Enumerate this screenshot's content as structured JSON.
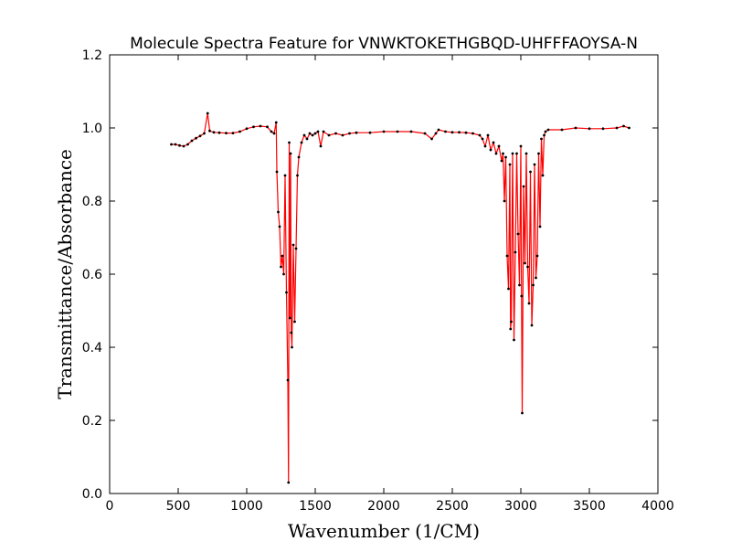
{
  "chart_data": {
    "type": "line",
    "title": "Molecule Spectra Feature for VNWKTOKETHGBQD-UHFFFAOYSA-N",
    "x_label": "Wavenumber (1/CM)",
    "y_label": "Transmittance/Absorbance",
    "line_color": "#ff0000",
    "marker_color": "#000000",
    "label_color": "#8b0000",
    "xlim": [
      0,
      4000
    ],
    "xticks": [
      0,
      500,
      1000,
      1500,
      2000,
      2500,
      3000,
      3500,
      4000
    ],
    "ylim": [
      0,
      1.2
    ],
    "yticks": [
      {
        "value": 0,
        "label": "0.0"
      },
      0.2,
      0.4,
      0.6,
      0.8,
      {
        "value": 1,
        "label": "1.0"
      },
      1.2
    ],
    "x": [
      450,
      480,
      510,
      540,
      570,
      600,
      630,
      660,
      690,
      715,
      730,
      760,
      800,
      850,
      900,
      950,
      1000,
      1050,
      1100,
      1150,
      1180,
      1200,
      1215,
      1220,
      1230,
      1240,
      1250,
      1260,
      1270,
      1280,
      1290,
      1300,
      1305,
      1310,
      1315,
      1320,
      1325,
      1330,
      1340,
      1350,
      1360,
      1370,
      1380,
      1400,
      1420,
      1440,
      1460,
      1480,
      1500,
      1520,
      1540,
      1560,
      1600,
      1650,
      1700,
      1750,
      1800,
      1900,
      2000,
      2100,
      2200,
      2300,
      2350,
      2380,
      2400,
      2450,
      2500,
      2550,
      2600,
      2650,
      2700,
      2720,
      2740,
      2760,
      2780,
      2800,
      2820,
      2840,
      2860,
      2870,
      2880,
      2890,
      2900,
      2910,
      2920,
      2925,
      2930,
      2940,
      2950,
      2960,
      2970,
      2980,
      2990,
      3000,
      3005,
      3010,
      3020,
      3030,
      3040,
      3050,
      3060,
      3070,
      3080,
      3090,
      3100,
      3110,
      3120,
      3130,
      3140,
      3150,
      3160,
      3170,
      3180,
      3200,
      3300,
      3400,
      3500,
      3600,
      3700,
      3750,
      3790
    ],
    "values": [
      0.955,
      0.955,
      0.952,
      0.95,
      0.955,
      0.965,
      0.972,
      0.978,
      0.985,
      1.04,
      0.992,
      0.988,
      0.987,
      0.986,
      0.986,
      0.99,
      0.998,
      1.003,
      1.005,
      1.003,
      0.99,
      0.985,
      1.015,
      0.88,
      0.77,
      0.73,
      0.62,
      0.65,
      0.6,
      0.87,
      0.55,
      0.31,
      0.03,
      0.96,
      0.48,
      0.93,
      0.44,
      0.4,
      0.68,
      0.47,
      0.67,
      0.87,
      0.92,
      0.96,
      0.98,
      0.97,
      0.985,
      0.98,
      0.985,
      0.99,
      0.95,
      0.99,
      0.98,
      0.985,
      0.98,
      0.985,
      0.987,
      0.987,
      0.99,
      0.99,
      0.99,
      0.985,
      0.97,
      0.985,
      0.995,
      0.99,
      0.988,
      0.988,
      0.987,
      0.985,
      0.98,
      0.97,
      0.95,
      0.98,
      0.94,
      0.96,
      0.93,
      0.95,
      0.91,
      0.93,
      0.8,
      0.92,
      0.65,
      0.56,
      0.9,
      0.45,
      0.47,
      0.93,
      0.42,
      0.66,
      0.93,
      0.71,
      0.57,
      0.95,
      0.54,
      0.22,
      0.84,
      0.63,
      0.93,
      0.62,
      0.52,
      0.88,
      0.46,
      0.57,
      0.9,
      0.59,
      0.65,
      0.93,
      0.73,
      0.97,
      0.87,
      0.98,
      0.99,
      0.995,
      0.995,
      1.0,
      0.998,
      0.998,
      1.0,
      1.005,
      1.0
    ]
  }
}
